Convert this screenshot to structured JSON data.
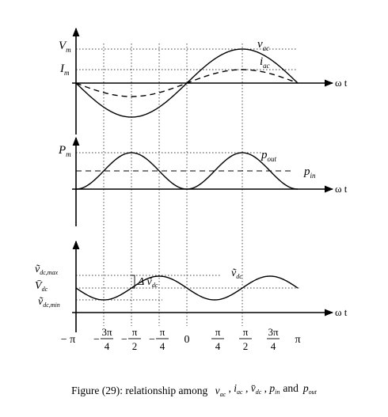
{
  "axis": {
    "omega_t": "ω t"
  },
  "panel1": {
    "ylabel_top_main": "V",
    "ylabel_top_sub": "m",
    "ylabel_mid_main": "I",
    "ylabel_mid_sub": "m",
    "curve_v_main": "v",
    "curve_v_sub": "ac",
    "curve_i_main": "i",
    "curve_i_sub": "ac"
  },
  "panel2": {
    "ylabel_main": "P",
    "ylabel_sub": "m",
    "curve_pout_main": "p",
    "curve_pout_sub": "out",
    "curve_pin_main": "p",
    "curve_pin_sub": "in"
  },
  "panel3": {
    "ylabel_max_main": "ṽ",
    "ylabel_max_sub": "dc,max",
    "ylabel_avg_main": "V̄",
    "ylabel_avg_sub": "dc",
    "ylabel_min_main": "ṽ",
    "ylabel_min_sub": "dc,min",
    "delta_main": "Δ ṽ",
    "delta_sub": "dc",
    "curve_main": "ṽ",
    "curve_sub": "dc"
  },
  "x_ticks": [
    {
      "pre": "− π",
      "num": "",
      "den": ""
    },
    {
      "pre": "−",
      "num": "3π",
      "den": "4"
    },
    {
      "pre": "−",
      "num": "π",
      "den": "2"
    },
    {
      "pre": "−",
      "num": "π",
      "den": "4"
    },
    {
      "pre": "0",
      "num": "",
      "den": ""
    },
    {
      "pre": "",
      "num": "π",
      "den": "4"
    },
    {
      "pre": "",
      "num": "π",
      "den": "2"
    },
    {
      "pre": "",
      "num": "3π",
      "den": "4"
    },
    {
      "pre": "π",
      "num": "",
      "den": ""
    }
  ],
  "caption": {
    "prefix": "Figure (29): relationship among",
    "t1_main": "v",
    "t1_sub": "ac",
    "t2_main": "i",
    "t2_sub": "ac",
    "t3_main": "v̄",
    "t3_sub": "dc",
    "t4_main": "p",
    "t4_sub": "in",
    "and": "and",
    "t5_main": "p",
    "t5_sub": "out"
  }
}
